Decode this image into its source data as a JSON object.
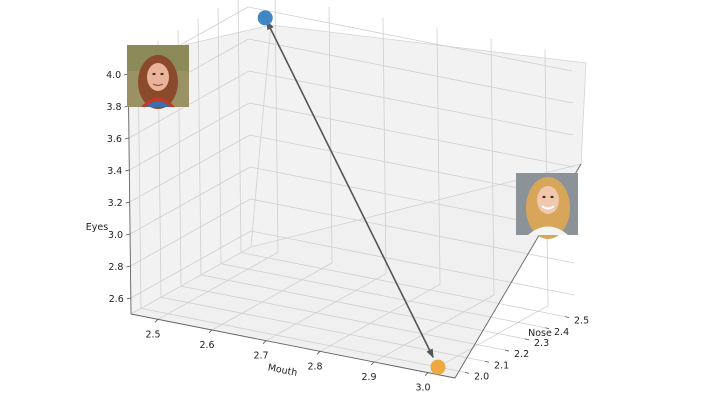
{
  "chart_data": {
    "type": "scatter",
    "projection": "3d",
    "title": "",
    "xlabel": "Mouth",
    "ylabel": "Nose",
    "zlabel": "Eyes",
    "xlim": [
      2.45,
      3.05
    ],
    "ylim": [
      1.95,
      2.55
    ],
    "zlim": [
      2.5,
      4.1
    ],
    "x_ticks": [
      "2.5",
      "2.6",
      "2.7",
      "2.8",
      "2.9",
      "3.0"
    ],
    "y_ticks": [
      "2.0",
      "2.1",
      "2.2",
      "2.3",
      "2.4",
      "2.5"
    ],
    "z_ticks": [
      "2.6",
      "2.8",
      "3.0",
      "3.2",
      "3.4",
      "3.6",
      "3.8",
      "4.0"
    ],
    "grid": true,
    "points": [
      {
        "x": 2.5,
        "y": 2.5,
        "z": 4.0,
        "color": "#3f86c4",
        "image": "face-portrait-1"
      },
      {
        "x": 3.0,
        "y": 2.0,
        "z": 2.5,
        "color": "#f0a840",
        "image": "face-portrait-2"
      }
    ],
    "arrow": {
      "from": 0,
      "to": 1,
      "color": "#555555"
    }
  }
}
